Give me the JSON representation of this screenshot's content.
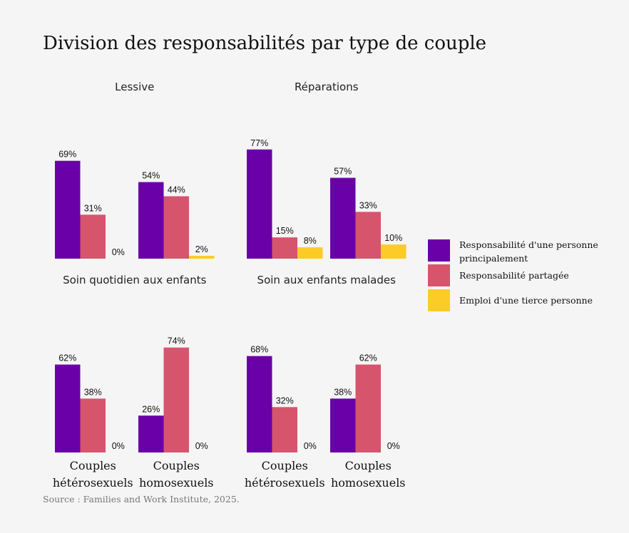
{
  "chart_data": {
    "type": "bar",
    "title": "Division des responsabilités par type de couple",
    "source": "Source : Families and Work Institute, 2025.",
    "ylim": [
      0,
      80
    ],
    "grid": false,
    "legend_placement": "right",
    "categories": [
      [
        "Couples",
        "hétérosexuels"
      ],
      [
        "Couples",
        "homosexuels"
      ]
    ],
    "series": [
      {
        "name": "Responsabilité d'une personne principalement",
        "legend_lines": [
          "Responsabilité d'une personne",
          "principalement"
        ],
        "color": "#6a00a8"
      },
      {
        "name": "Responsabilité partagée",
        "legend_lines": [
          "Responsabilité partagée"
        ],
        "color": "#d6556d"
      },
      {
        "name": "Emploi d'une tierce personne",
        "legend_lines": [
          "Emploi d'une tierce personne"
        ],
        "color": "#fdcb26"
      }
    ],
    "panels": [
      {
        "title": "Lessive",
        "values": [
          [
            69,
            31,
            0
          ],
          [
            54,
            44,
            2
          ]
        ]
      },
      {
        "title": "Réparations",
        "values": [
          [
            77,
            15,
            8
          ],
          [
            57,
            33,
            10
          ]
        ]
      },
      {
        "title": "Soin quotidien aux enfants",
        "values": [
          [
            62,
            38,
            0
          ],
          [
            26,
            74,
            0
          ]
        ]
      },
      {
        "title": "Soin aux enfants malades",
        "values": [
          [
            68,
            32,
            0
          ],
          [
            38,
            62,
            0
          ]
        ]
      }
    ]
  }
}
